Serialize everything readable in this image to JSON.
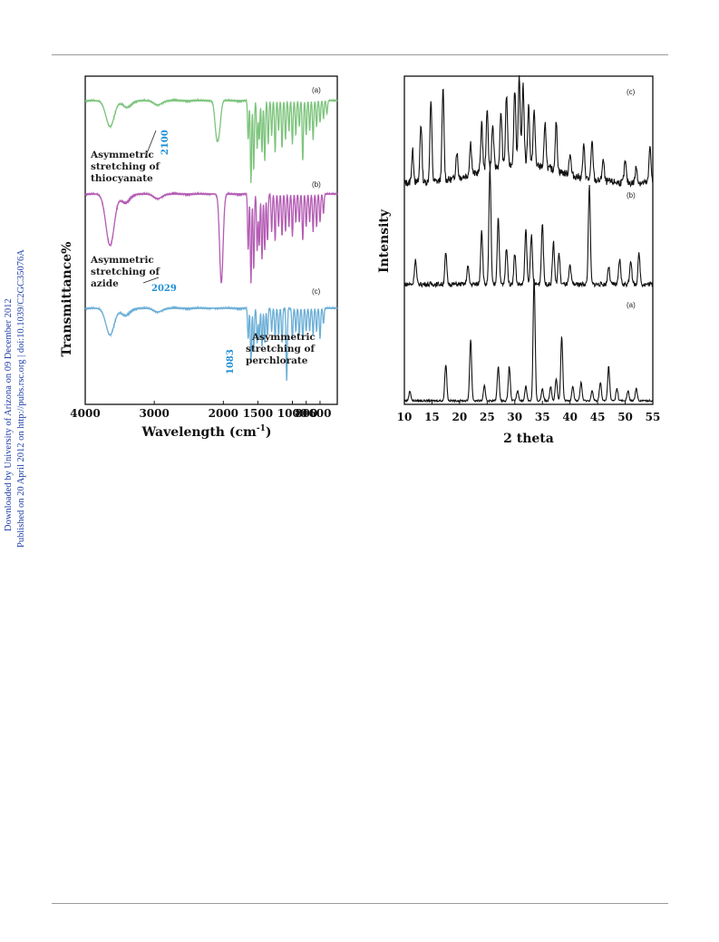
{
  "sidebar": {
    "line1": "Downloaded by University of Arizona on 09 December 2012",
    "line2": "Published on 20 April 2012 on http://pubs.rsc.org | doi:10.1039/C2GC35076A"
  },
  "colors": {
    "ir_a": "#7cc47c",
    "ir_b": "#b45cb4",
    "ir_c": "#6aaed6",
    "xrd": "#111111",
    "wavenumber_label": "#1e8ed6",
    "sidebar_text": "#1f3fa8"
  },
  "chart_data": [
    {
      "type": "line",
      "xlabel_main": "Wavelength (cm",
      "xlabel_sup": "-1",
      "xlabel_close": ")",
      "ylabel": "Transmittance%",
      "xlim": [
        4000,
        350
      ],
      "x_reversed": true,
      "xticks": [
        "4000",
        "3000",
        "2000",
        "1500",
        "1000",
        "800",
        "600"
      ],
      "xtick_values": [
        4000,
        3000,
        2000,
        1500,
        1000,
        800,
        600
      ],
      "grid": false,
      "series": [
        {
          "tag": "(a)",
          "annotation": [
            "Asymmetric",
            "stretching of",
            "thiocyanate"
          ],
          "peak_label": "2100",
          "peaks": [
            3640,
            3400,
            2950,
            2100,
            2060,
            1640,
            1600,
            1560,
            1510,
            1480,
            1440,
            1400,
            1350,
            1300,
            1250,
            1200,
            1150,
            1100,
            1050,
            1000,
            950,
            900,
            850,
            800,
            750,
            700,
            650,
            600,
            550,
            500
          ],
          "depths": [
            0.3,
            0.08,
            0.05,
            0.35,
            0.3,
            0.45,
            0.95,
            0.8,
            0.55,
            0.45,
            0.6,
            0.7,
            0.5,
            0.4,
            0.6,
            0.35,
            0.55,
            0.45,
            0.35,
            0.5,
            0.4,
            0.3,
            0.7,
            0.4,
            0.35,
            0.45,
            0.3,
            0.25,
            0.2,
            0.15
          ]
        },
        {
          "tag": "(b)",
          "annotation": [
            "Asymmetric",
            "stretching of",
            "azide"
          ],
          "peak_label": "2029",
          "peaks": [
            3640,
            3420,
            2950,
            2029,
            1640,
            1600,
            1560,
            1510,
            1480,
            1440,
            1400,
            1360,
            1300,
            1250,
            1200,
            1150,
            1100,
            1050,
            1000,
            950,
            900,
            850,
            800,
            750,
            700,
            650,
            600,
            550
          ],
          "depths": [
            0.55,
            0.1,
            0.05,
            0.95,
            0.6,
            0.95,
            0.8,
            0.6,
            0.55,
            0.7,
            0.6,
            0.5,
            0.4,
            0.5,
            0.35,
            0.45,
            0.4,
            0.35,
            0.45,
            0.3,
            0.3,
            0.5,
            0.35,
            0.3,
            0.4,
            0.35,
            0.3,
            0.2
          ]
        },
        {
          "tag": "(c)",
          "annotation": [
            "Asymmetric",
            "stretching of",
            "perchlorate"
          ],
          "peak_label": "1083",
          "peaks": [
            3640,
            3420,
            2950,
            1640,
            1600,
            1560,
            1510,
            1480,
            1440,
            1400,
            1360,
            1300,
            1250,
            1200,
            1150,
            1083,
            1000,
            950,
            900,
            850,
            800,
            750,
            700,
            650,
            600,
            550
          ],
          "depths": [
            0.35,
            0.1,
            0.05,
            0.4,
            0.7,
            0.55,
            0.45,
            0.4,
            0.5,
            0.45,
            0.35,
            0.3,
            0.4,
            0.35,
            0.45,
            0.95,
            0.4,
            0.3,
            0.35,
            0.4,
            0.3,
            0.3,
            0.35,
            0.3,
            0.4,
            0.2
          ]
        }
      ]
    },
    {
      "type": "line",
      "xlabel": "2 theta",
      "ylabel": "Intensity",
      "xlim": [
        10,
        55
      ],
      "xticks": [
        "10",
        "15",
        "20",
        "25",
        "30",
        "35",
        "40",
        "45",
        "50",
        "55"
      ],
      "xtick_values": [
        10,
        15,
        20,
        25,
        30,
        35,
        40,
        45,
        50,
        55
      ],
      "grid": false,
      "series": [
        {
          "tag": "(c)",
          "peaks": [
            11.5,
            13.0,
            14.8,
            17.0,
            19.5,
            22.0,
            24.0,
            25.0,
            26.0,
            27.5,
            28.5,
            30.0,
            30.8,
            31.5,
            32.5,
            33.5,
            35.5,
            37.5,
            40.0,
            42.5,
            44.0,
            46.0,
            50.0,
            52.0,
            54.5
          ],
          "heights": [
            0.3,
            0.55,
            0.75,
            0.85,
            0.25,
            0.3,
            0.45,
            0.55,
            0.4,
            0.5,
            0.65,
            0.7,
            0.8,
            0.75,
            0.55,
            0.5,
            0.4,
            0.45,
            0.2,
            0.3,
            0.35,
            0.2,
            0.2,
            0.15,
            0.35
          ]
        },
        {
          "tag": "(b)",
          "peaks": [
            12.0,
            17.5,
            21.5,
            24.0,
            25.5,
            27.0,
            28.5,
            30.0,
            32.0,
            33.0,
            35.0,
            37.0,
            38.0,
            40.0,
            43.5,
            47.0,
            49.0,
            51.0,
            52.5
          ],
          "heights": [
            0.2,
            0.25,
            0.15,
            0.45,
            0.95,
            0.55,
            0.3,
            0.25,
            0.45,
            0.4,
            0.5,
            0.35,
            0.25,
            0.15,
            0.8,
            0.15,
            0.2,
            0.2,
            0.25
          ]
        },
        {
          "tag": "(a)",
          "peaks": [
            11.0,
            17.5,
            22.0,
            24.5,
            27.0,
            29.0,
            30.5,
            32.0,
            33.5,
            35.0,
            36.5,
            37.5,
            38.5,
            40.5,
            42.0,
            44.0,
            45.5,
            47.0,
            48.5,
            50.5,
            52.0
          ],
          "heights": [
            0.08,
            0.3,
            0.5,
            0.12,
            0.28,
            0.28,
            0.08,
            0.12,
            1.0,
            0.1,
            0.12,
            0.18,
            0.52,
            0.12,
            0.15,
            0.08,
            0.15,
            0.28,
            0.1,
            0.08,
            0.1
          ]
        }
      ]
    }
  ]
}
